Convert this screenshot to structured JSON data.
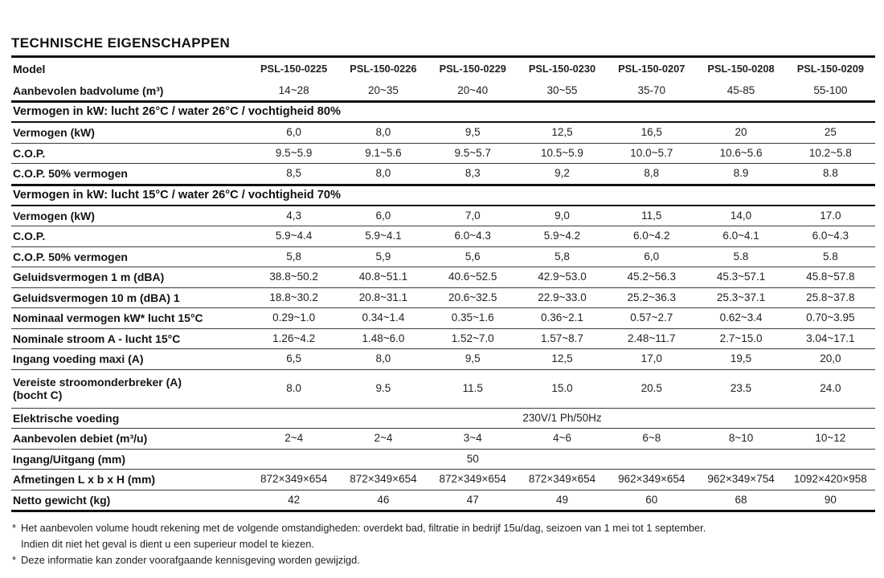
{
  "page_title": "TECHNISCHE EIGENSCHAPPEN",
  "colors": {
    "text": "#1a1a1a",
    "rule": "#101010",
    "background": "#ffffff"
  },
  "table": {
    "rows": [
      {
        "kind": "model",
        "label": "Model",
        "values": [
          "PSL-150-0225",
          "PSL-150-0226",
          "PSL-150-0229",
          "PSL-150-0230",
          "PSL-150-0207",
          "PSL-150-0208",
          "PSL-150-0209"
        ]
      },
      {
        "kind": "data",
        "flush": true,
        "label": "Aanbevolen badvolume (m³)",
        "values": [
          "14~28",
          "20~35",
          "20~40",
          "30~55",
          "35-70",
          "45-85",
          "55-100"
        ]
      },
      {
        "kind": "section",
        "label": "Vermogen in kW: lucht 26°C / water 26°C / vochtigheid 80%"
      },
      {
        "kind": "data",
        "label": "Vermogen (kW)",
        "values": [
          "6,0",
          "8,0",
          "9,5",
          "12,5",
          "16,5",
          "20",
          "25"
        ]
      },
      {
        "kind": "data",
        "label": "C.O.P.",
        "values": [
          "9.5~5.9",
          "9.1~5.6",
          "9.5~5.7",
          "10.5~5.9",
          "10.0~5.7",
          "10.6~5.6",
          "10.2~5.8"
        ]
      },
      {
        "kind": "data",
        "label": "C.O.P. 50% vermogen",
        "values": [
          "8,5",
          "8,0",
          "8,3",
          "9,2",
          "8,8",
          "8.9",
          "8.8"
        ]
      },
      {
        "kind": "section",
        "label": "Vermogen in kW: lucht 15°C / water 26°C / vochtigheid 70%"
      },
      {
        "kind": "data",
        "label": "Vermogen (kW)",
        "values": [
          "4,3",
          "6,0",
          "7,0",
          "9,0",
          "11,5",
          "14,0",
          "17.0"
        ]
      },
      {
        "kind": "data",
        "label": "C.O.P.",
        "values": [
          "5.9~4.4",
          "5.9~4.1",
          "6.0~4.3",
          "5.9~4.2",
          "6.0~4.2",
          "6.0~4.1",
          "6.0~4.3"
        ]
      },
      {
        "kind": "data",
        "label": "C.O.P. 50% vermogen",
        "values": [
          "5,8",
          "5,9",
          "5,6",
          "5,8",
          "6,0",
          "5.8",
          "5.8"
        ]
      },
      {
        "kind": "data",
        "label": "Geluidsvermogen 1 m (dBA)",
        "values": [
          "38.8~50.2",
          "40.8~51.1",
          "40.6~52.5",
          "42.9~53.0",
          "45.2~56.3",
          "45.3~57.1",
          "45.8~57.8"
        ]
      },
      {
        "kind": "data",
        "label": "Geluidsvermogen 10 m (dBA) 1",
        "values": [
          "18.8~30.2",
          "20.8~31.1",
          "20.6~32.5",
          "22.9~33.0",
          "25.2~36.3",
          "25.3~37.1",
          "25.8~37.8"
        ]
      },
      {
        "kind": "data",
        "label": "Nominaal vermogen kW* lucht 15°C",
        "values": [
          "0.29~1.0",
          "0.34~1.4",
          "0.35~1.6",
          "0.36~2.1",
          "0.57~2.7",
          "0.62~3.4",
          "0.70~3.95"
        ]
      },
      {
        "kind": "data",
        "label": "Nominale stroom A - lucht 15°C",
        "values": [
          "1.26~4.2",
          "1.48~6.0",
          "1.52~7.0",
          "1.57~8.7",
          "2.48~11.7",
          "2.7~15.0",
          "3.04~17.1"
        ]
      },
      {
        "kind": "data",
        "label": "Ingang voeding maxi (A)",
        "values": [
          "6,5",
          "8,0",
          "9,5",
          "12,5",
          "17,0",
          "19,5",
          "20,0"
        ]
      },
      {
        "kind": "data",
        "label": "Vereiste stroomonderbreker (A)",
        "label2": "(bocht C)",
        "values": [
          "8.0",
          "9.5",
          "11.5",
          "15.0",
          "20.5",
          "23.5",
          "24.0"
        ]
      },
      {
        "kind": "merged",
        "label": "Elektrische voeding",
        "value": "230V/1 Ph/50Hz",
        "span": 7
      },
      {
        "kind": "data",
        "label": "Aanbevolen debiet (m³/u)",
        "values": [
          "2~4",
          "2~4",
          "3~4",
          "4~6",
          "6~8",
          "8~10",
          "10~12"
        ]
      },
      {
        "kind": "merged",
        "label": "Ingang/Uitgang (mm)",
        "value": "50",
        "span": 5
      },
      {
        "kind": "data",
        "label": "Afmetingen L x b x H (mm)",
        "values": [
          "872×349×654",
          "872×349×654",
          "872×349×654",
          "872×349×654",
          "962×349×654",
          "962×349×754",
          "1092×420×958"
        ]
      },
      {
        "kind": "data",
        "label": "Netto gewicht (kg)",
        "values": [
          "42",
          "46",
          "47",
          "49",
          "60",
          "68",
          "90"
        ]
      }
    ]
  },
  "footnotes": [
    {
      "marker": "*",
      "text": "Het aanbevolen volume houdt rekening met de volgende omstandigheden: overdekt bad, filtratie in bedrijf 15u/dag, seizoen van 1 mei tot 1 september."
    },
    {
      "marker": "",
      "text": "Indien dit niet het geval is dient u een superieur model te kiezen."
    },
    {
      "marker": "*",
      "text": "Deze informatie kan zonder voorafgaande kennisgeving worden gewijzigd."
    }
  ]
}
